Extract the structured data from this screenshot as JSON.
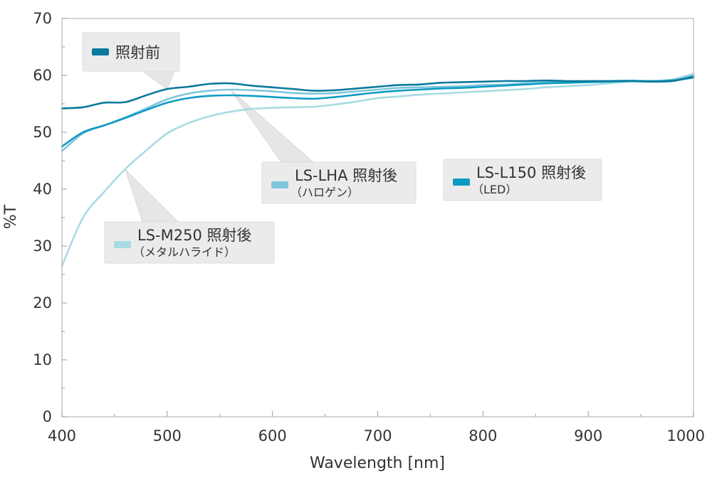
{
  "chart_data": {
    "type": "line",
    "xlabel": "Wavelength [nm]",
    "ylabel": "%T",
    "xlim": [
      400,
      1000
    ],
    "ylim": [
      0,
      70
    ],
    "x_ticks": [
      "400",
      "500",
      "600",
      "700",
      "800",
      "900",
      "1000"
    ],
    "y_ticks": [
      "0",
      "10",
      "20",
      "30",
      "40",
      "50",
      "60",
      "70"
    ],
    "grid": false,
    "series": [
      {
        "name": "照射前",
        "color": "#0a7a9c",
        "x": [
          400,
          420,
          440,
          460,
          480,
          500,
          520,
          540,
          560,
          580,
          600,
          620,
          640,
          660,
          680,
          700,
          720,
          740,
          760,
          780,
          800,
          820,
          840,
          860,
          880,
          900,
          920,
          940,
          960,
          980,
          1000
        ],
        "values": [
          54.2,
          54.4,
          55.2,
          55.3,
          56.5,
          57.6,
          58.0,
          58.5,
          58.6,
          58.2,
          57.9,
          57.6,
          57.3,
          57.4,
          57.7,
          58.0,
          58.3,
          58.4,
          58.7,
          58.8,
          58.9,
          59.0,
          59.0,
          59.1,
          59.0,
          59.0,
          59.0,
          59.0,
          58.9,
          59.0,
          59.8
        ]
      },
      {
        "name": "LS-LHA 照射後",
        "subtitle": "（ハロゲン）",
        "color": "#7ec6dc",
        "x": [
          400,
          420,
          440,
          460,
          480,
          500,
          520,
          540,
          560,
          580,
          600,
          620,
          640,
          660,
          680,
          700,
          720,
          740,
          760,
          780,
          800,
          820,
          840,
          860,
          880,
          900,
          920,
          940,
          960,
          980,
          1000
        ],
        "values": [
          46.7,
          49.8,
          51.2,
          52.6,
          54.2,
          55.8,
          56.8,
          57.3,
          57.5,
          57.4,
          57.2,
          56.9,
          56.8,
          56.9,
          57.2,
          57.5,
          57.8,
          57.9,
          58.0,
          58.1,
          58.3,
          58.4,
          58.6,
          58.8,
          58.9,
          59.0,
          59.0,
          59.1,
          59.0,
          59.2,
          60.0
        ]
      },
      {
        "name": "LS-L150 照射後",
        "subtitle": "（LED）",
        "color": "#0e9bc2",
        "x": [
          400,
          420,
          440,
          460,
          480,
          500,
          520,
          540,
          560,
          580,
          600,
          620,
          640,
          660,
          680,
          700,
          720,
          740,
          760,
          780,
          800,
          820,
          840,
          860,
          880,
          900,
          920,
          940,
          960,
          980,
          1000
        ],
        "values": [
          47.5,
          50.0,
          51.2,
          52.5,
          53.9,
          55.2,
          56.0,
          56.4,
          56.5,
          56.4,
          56.2,
          56.0,
          55.9,
          56.2,
          56.6,
          57.0,
          57.3,
          57.5,
          57.7,
          57.8,
          58.0,
          58.2,
          58.4,
          58.6,
          58.7,
          58.8,
          58.9,
          59.0,
          59.0,
          59.1,
          59.6
        ]
      },
      {
        "name": "LS-M250 照射後",
        "subtitle": "（メタルハライド）",
        "color": "#a8dbe2",
        "x": [
          400,
          420,
          440,
          460,
          480,
          500,
          520,
          540,
          560,
          580,
          600,
          620,
          640,
          660,
          680,
          700,
          720,
          740,
          760,
          780,
          800,
          820,
          840,
          860,
          880,
          900,
          920,
          940,
          960,
          980,
          1000
        ],
        "values": [
          26.5,
          35.0,
          39.5,
          43.5,
          46.8,
          49.8,
          51.6,
          52.8,
          53.6,
          54.1,
          54.3,
          54.4,
          54.5,
          54.9,
          55.4,
          56.0,
          56.3,
          56.6,
          56.8,
          57.0,
          57.2,
          57.4,
          57.6,
          57.9,
          58.1,
          58.3,
          58.6,
          58.9,
          59.0,
          59.3,
          60.3
        ]
      }
    ]
  },
  "callouts": [
    {
      "series": 0,
      "title": "照射前",
      "subtitle": ""
    },
    {
      "series": 1,
      "title": "LS-LHA 照射後",
      "subtitle": "（ハロゲン）"
    },
    {
      "series": 2,
      "title": "LS-L150 照射後",
      "subtitle": "（LED）"
    },
    {
      "series": 3,
      "title": "LS-M250 照射後",
      "subtitle": "（メタルハライド）"
    }
  ]
}
